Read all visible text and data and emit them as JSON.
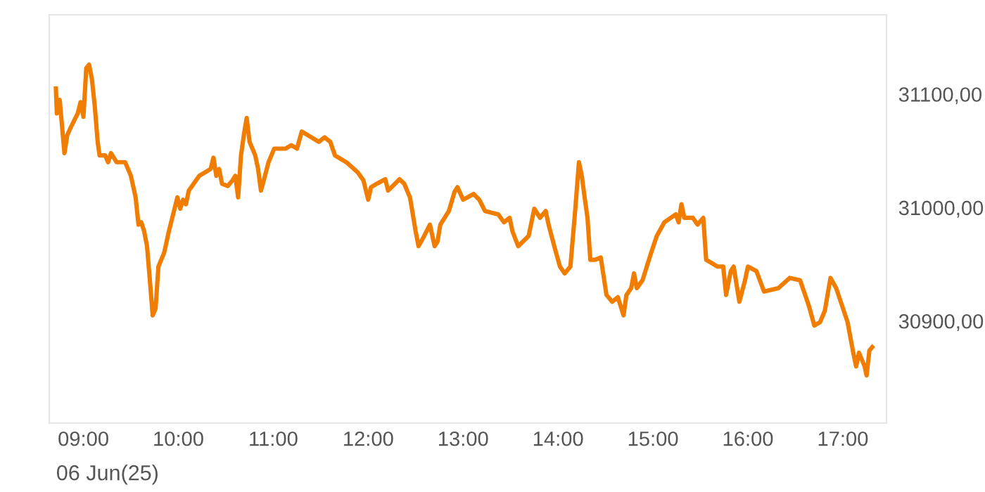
{
  "chart_data": {
    "type": "line",
    "color": "#f07c00",
    "line_style": "solid",
    "marker": "none",
    "grid": false,
    "legend": false,
    "x": [
      8.71,
      8.72,
      8.75,
      8.8,
      8.83,
      8.88,
      8.94,
      8.97,
      9.0,
      9.03,
      9.06,
      9.09,
      9.12,
      9.15,
      9.17,
      9.23,
      9.26,
      9.29,
      9.35,
      9.44,
      9.5,
      9.55,
      9.58,
      9.61,
      9.64,
      9.67,
      9.7,
      9.73,
      9.76,
      9.79,
      9.85,
      9.9,
      9.96,
      9.99,
      10.02,
      10.05,
      10.08,
      10.11,
      10.22,
      10.28,
      10.34,
      10.37,
      10.4,
      10.43,
      10.46,
      10.52,
      10.57,
      10.6,
      10.63,
      10.66,
      10.69,
      10.72,
      10.75,
      10.81,
      10.84,
      10.87,
      10.9,
      10.95,
      11.01,
      11.13,
      11.19,
      11.25,
      11.3,
      11.42,
      11.48,
      11.54,
      11.6,
      11.65,
      11.77,
      11.89,
      11.95,
      12.0,
      12.03,
      12.09,
      12.18,
      12.21,
      12.33,
      12.38,
      12.44,
      12.5,
      12.53,
      12.59,
      12.65,
      12.7,
      12.73,
      12.76,
      12.85,
      12.91,
      12.94,
      13.0,
      13.11,
      13.17,
      13.23,
      13.37,
      13.43,
      13.49,
      13.52,
      13.58,
      13.69,
      13.75,
      13.81,
      13.87,
      13.9,
      13.96,
      14.02,
      14.07,
      14.13,
      14.18,
      14.22,
      14.25,
      14.28,
      14.31,
      14.34,
      14.39,
      14.45,
      14.51,
      14.57,
      14.63,
      14.69,
      14.72,
      14.77,
      14.8,
      14.83,
      14.89,
      14.98,
      15.04,
      15.12,
      15.24,
      15.27,
      15.3,
      15.33,
      15.42,
      15.47,
      15.53,
      15.56,
      15.68,
      15.74,
      15.77,
      15.82,
      15.85,
      15.91,
      15.97,
      16.0,
      16.09,
      16.17,
      16.32,
      16.44,
      16.55,
      16.64,
      16.7,
      16.76,
      16.81,
      16.87,
      16.93,
      16.99,
      17.05,
      17.11,
      17.14,
      17.17,
      17.23,
      17.25,
      17.28,
      17.31
    ],
    "values": [
      31105,
      31083,
      31095,
      31048,
      31064,
      31073,
      31083,
      31093,
      31080,
      31123,
      31126,
      31113,
      31089,
      31058,
      31046,
      31046,
      31040,
      31048,
      31040,
      31040,
      31028,
      31009,
      30985,
      30987,
      30979,
      30966,
      30936,
      30905,
      30911,
      30948,
      30960,
      30979,
      30999,
      31009,
      30999,
      31007,
      31003,
      31015,
      31028,
      31031,
      31034,
      31044,
      31028,
      31034,
      31021,
      31019,
      31024,
      31028,
      31009,
      31046,
      31064,
      31079,
      31058,
      31046,
      31034,
      31015,
      31024,
      31040,
      31052,
      31052,
      31055,
      31052,
      31067,
      31061,
      31058,
      31062,
      31058,
      31046,
      31040,
      31031,
      31024,
      31007,
      31018,
      31021,
      31025,
      31015,
      31025,
      31021,
      31009,
      30979,
      30966,
      30975,
      30985,
      30966,
      30970,
      30985,
      30997,
      31014,
      31018,
      31007,
      31012,
      31007,
      30997,
      30994,
      30987,
      30991,
      30979,
      30966,
      30975,
      30999,
      30991,
      30997,
      30985,
      30966,
      30948,
      30942,
      30948,
      30997,
      31040,
      31028,
      31009,
      30991,
      30954,
      30954,
      30956,
      30923,
      30917,
      30921,
      30905,
      30923,
      30929,
      30942,
      30929,
      30936,
      30960,
      30975,
      30987,
      30994,
      30987,
      31003,
      30991,
      30991,
      30985,
      30991,
      30954,
      30948,
      30948,
      30923,
      30944,
      30948,
      30917,
      30936,
      30948,
      30944,
      30926,
      30929,
      30938,
      30936,
      30914,
      30896,
      30899,
      30909,
      30938,
      30929,
      30914,
      30899,
      30872,
      30860,
      30872,
      30860,
      30852,
      30874,
      30877
    ],
    "xlim": [
      8.64,
      17.46
    ],
    "ylim": [
      30810,
      31170
    ],
    "xticks": [
      {
        "value": 9,
        "label": "09:00"
      },
      {
        "value": 10,
        "label": "10:00"
      },
      {
        "value": 11,
        "label": "11:00"
      },
      {
        "value": 12,
        "label": "12:00"
      },
      {
        "value": 13,
        "label": "13:00"
      },
      {
        "value": 14,
        "label": "14:00"
      },
      {
        "value": 15,
        "label": "15:00"
      },
      {
        "value": 16,
        "label": "16:00"
      },
      {
        "value": 17,
        "label": "17:00"
      }
    ],
    "yticks": [
      {
        "value": 30900,
        "label": "30900,00"
      },
      {
        "value": 31000,
        "label": "31000,00"
      },
      {
        "value": 31100,
        "label": "31100,00"
      }
    ],
    "annotations": [
      "06 Jun(25)"
    ]
  }
}
